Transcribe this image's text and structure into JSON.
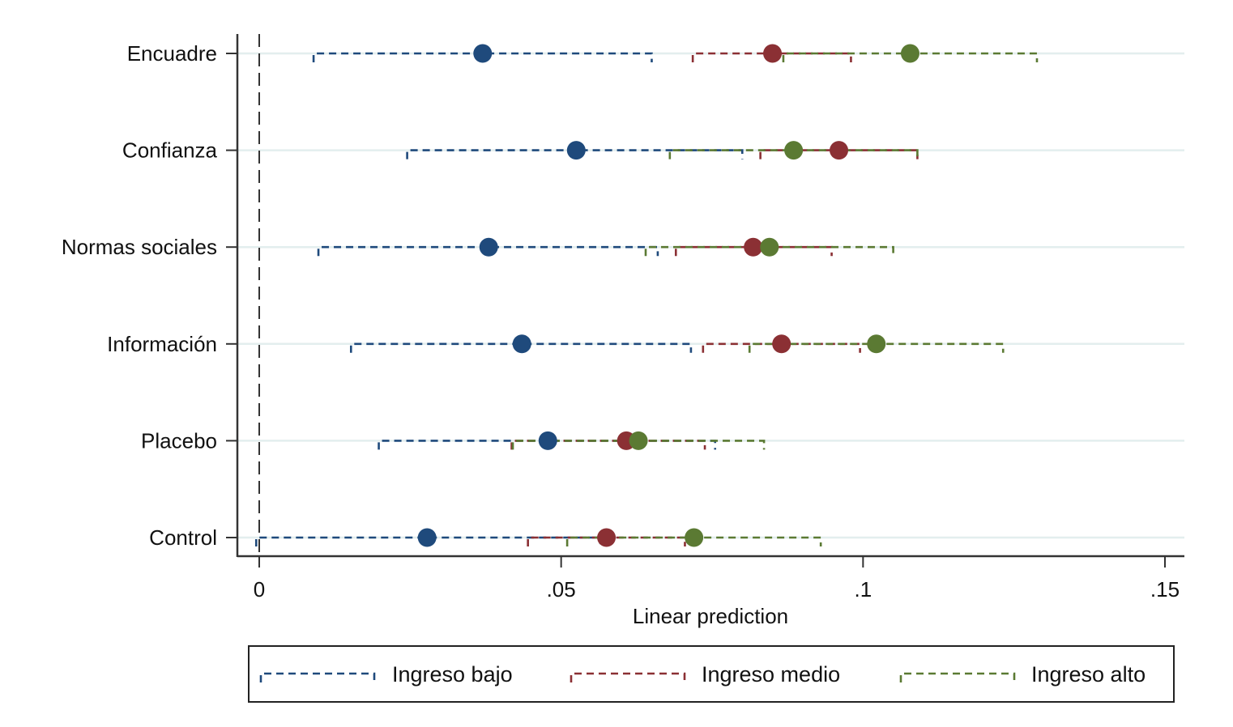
{
  "chart_data": {
    "type": "scatter",
    "subtype": "dot-with-confidence-intervals",
    "orientation": "horizontal",
    "title": "",
    "xlabel": "Linear prediction",
    "ylabel": "",
    "xlim": [
      0,
      0.15
    ],
    "x_ticks": [
      0,
      0.05,
      0.1,
      0.15
    ],
    "x_tick_labels": [
      "0",
      ".05",
      ".1",
      ".15"
    ],
    "reference_line_x": 0,
    "categories": [
      "Encuadre",
      "Confianza",
      "Normas sociales",
      "Información",
      "Placebo",
      "Control"
    ],
    "grid": "horizontal",
    "legend_position": "bottom",
    "series": [
      {
        "name": "Ingreso bajo",
        "color": "#1f4a7c",
        "estimates": [
          0.037,
          0.0525,
          0.038,
          0.0435,
          0.0478,
          0.0278
        ],
        "lower": [
          0.009,
          0.0245,
          0.0098,
          0.0152,
          0.0198,
          -0.0005
        ],
        "upper": [
          0.065,
          0.08,
          0.066,
          0.0715,
          0.0755,
          0.0565
        ]
      },
      {
        "name": "Ingreso medio",
        "color": "#8b3034",
        "estimates": [
          0.085,
          0.096,
          0.0818,
          0.0865,
          0.0608,
          0.0575
        ],
        "lower": [
          0.0718,
          0.083,
          0.069,
          0.0735,
          0.0418,
          0.0445
        ],
        "upper": [
          0.098,
          0.109,
          0.0948,
          0.0995,
          0.0738,
          0.0705
        ]
      },
      {
        "name": "Ingreso alto",
        "color": "#5b7a33",
        "estimates": [
          0.1078,
          0.0885,
          0.0845,
          0.1022,
          0.0628,
          0.072
        ],
        "lower": [
          0.0868,
          0.068,
          0.064,
          0.0812,
          0.042,
          0.051
        ],
        "upper": [
          0.1288,
          0.109,
          0.105,
          0.1232,
          0.0836,
          0.093
        ]
      }
    ]
  }
}
